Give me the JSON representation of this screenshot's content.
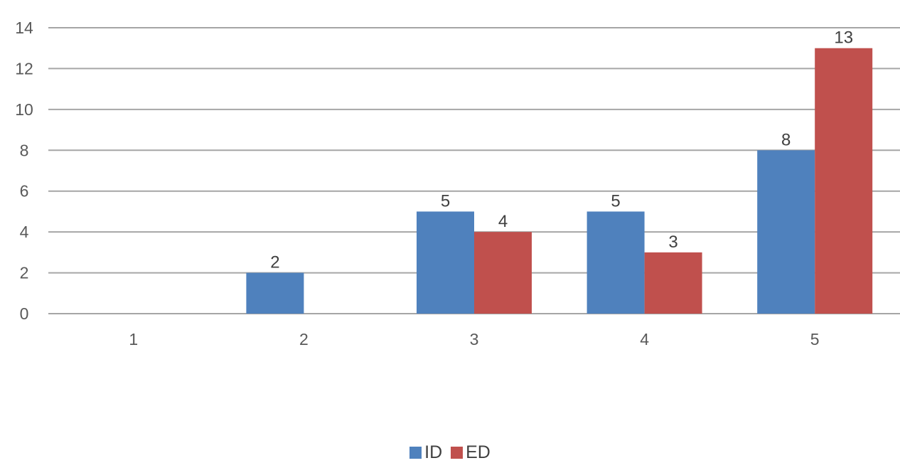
{
  "chart_data": {
    "type": "bar",
    "categories": [
      "1",
      "2",
      "3",
      "4",
      "5"
    ],
    "series": [
      {
        "name": "ID",
        "color": "#4f81bd",
        "values": [
          0,
          2,
          5,
          5,
          8
        ]
      },
      {
        "name": "ED",
        "color": "#c0504d",
        "values": [
          0,
          0,
          4,
          3,
          13
        ]
      }
    ],
    "ylim": [
      0,
      14
    ],
    "yticks": [
      0,
      2,
      4,
      6,
      8,
      10,
      12,
      14
    ],
    "grid": true,
    "legend_position": "bottom",
    "data_labels": true
  }
}
